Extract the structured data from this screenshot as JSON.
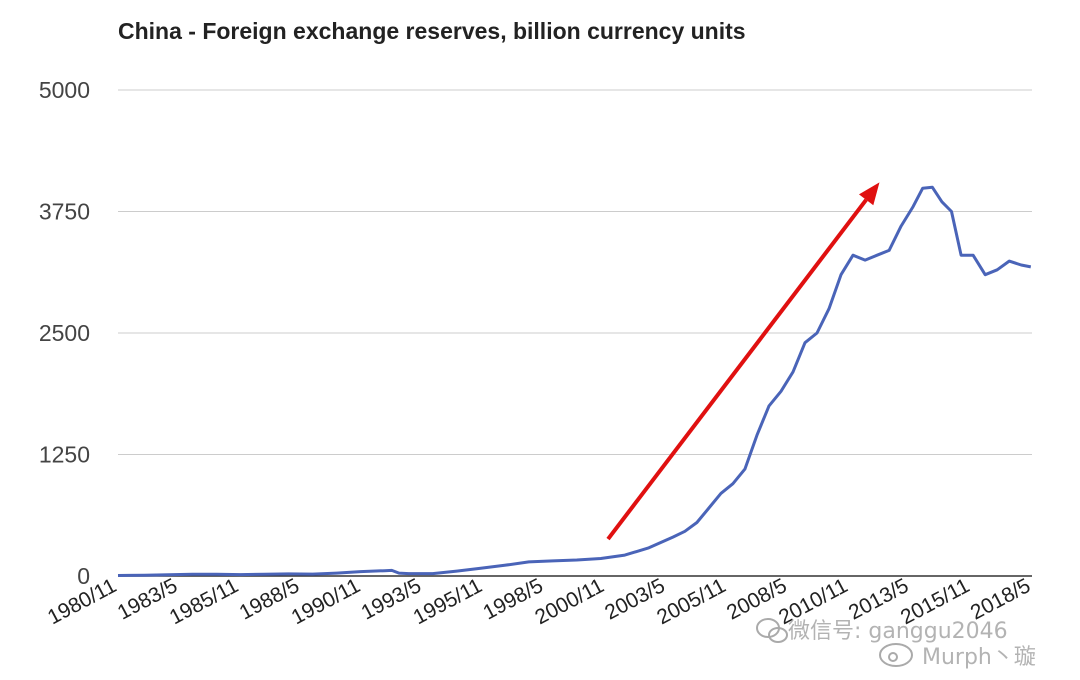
{
  "chart_data": {
    "type": "line",
    "title": "China - Foreign exchange reserves, billion currency units",
    "xlabel": "",
    "ylabel": "",
    "ylim": [
      0,
      5000
    ],
    "yticks": [
      "0",
      "1250",
      "2500",
      "3750",
      "5000"
    ],
    "xticks": [
      "1980/11",
      "1983/5",
      "1985/11",
      "1988/5",
      "1990/11",
      "1993/5",
      "1995/11",
      "1998/5",
      "2000/11",
      "2003/5",
      "2005/11",
      "2008/5",
      "2010/11",
      "2013/5",
      "2015/11",
      "2018/5"
    ],
    "grid": true,
    "line_color": "#4a64b8",
    "arrow_color": "#e01010",
    "arrow": {
      "from": [
        2001.3,
        380
      ],
      "to": [
        2012.6,
        4050
      ]
    },
    "series": [
      {
        "x": [
          1980.9,
          1982,
          1983,
          1984,
          1985,
          1986,
          1987,
          1988,
          1989,
          1990,
          1991,
          1992,
          1992.3,
          1992.6,
          1993,
          1994,
          1995,
          1996,
          1997,
          1998,
          1999,
          2000,
          2001,
          2002,
          2003,
          2004,
          2004.5,
          2005,
          2005.5,
          2006,
          2006.5,
          2007,
          2007.5,
          2008,
          2008.5,
          2009,
          2009.5,
          2010,
          2010.5,
          2011,
          2011.5,
          2012,
          2012.5,
          2013,
          2013.5,
          2014,
          2014.4,
          2014.8,
          2015.2,
          2015.6,
          2016,
          2016.5,
          2017,
          2017.5,
          2018,
          2018.5,
          2018.9
        ],
        "values": [
          5,
          8,
          12,
          17,
          18,
          14,
          19,
          22,
          20,
          30,
          45,
          55,
          58,
          30,
          25,
          25,
          50,
          80,
          110,
          145,
          155,
          165,
          180,
          215,
          290,
          400,
          460,
          550,
          700,
          850,
          950,
          1100,
          1450,
          1750,
          1900,
          2100,
          2400,
          2500,
          2750,
          3100,
          3300,
          3250,
          3300,
          3350,
          3600,
          3800,
          3990,
          4000,
          3850,
          3750,
          3300,
          3300,
          3100,
          3150,
          3240,
          3200,
          3180
        ]
      }
    ]
  },
  "watermark": {
    "wechat_label": "微信号: ganggu2046",
    "weibo_label": "Murph丶璇"
  }
}
